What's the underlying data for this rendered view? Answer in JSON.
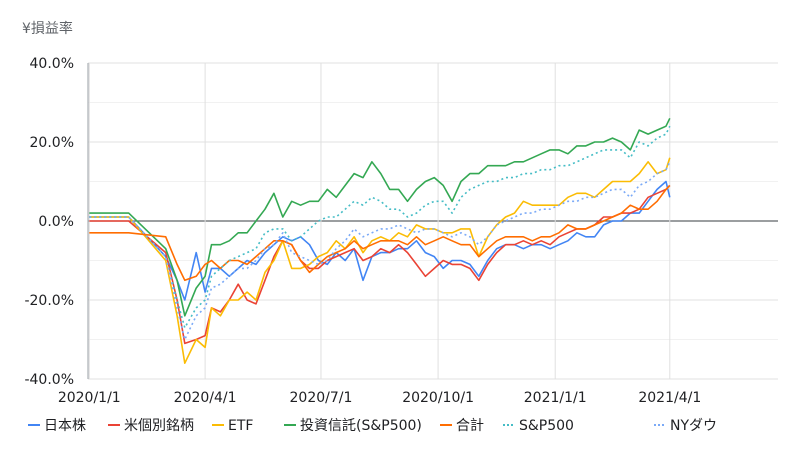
{
  "chart_data": {
    "type": "line",
    "title": "¥損益率",
    "xlabel": "",
    "ylabel": "",
    "x_ticks": [
      "2020/1/1",
      "2020/4/1",
      "2020/7/1",
      "2020/10/1",
      "2021/1/1",
      "2021/4/1"
    ],
    "y_ticks": [
      "40.0%",
      "20.0%",
      "0.0%",
      "-20.0%",
      "-40.0%"
    ],
    "ylim": [
      -40,
      40
    ],
    "xlim": [
      "2019-12-31",
      "2021-06-25"
    ],
    "grid": true,
    "legend_position": "bottom",
    "series": [
      {
        "name": "日本株",
        "color": "#4285F4",
        "dash": false,
        "x": [
          "2020-01-01",
          "2020-02-01",
          "2020-03-01",
          "2020-03-10",
          "2020-03-16",
          "2020-03-25",
          "2020-04-01",
          "2020-04-06",
          "2020-04-13",
          "2020-04-20",
          "2020-04-27",
          "2020-05-04",
          "2020-05-11",
          "2020-05-18",
          "2020-05-25",
          "2020-06-01",
          "2020-06-08",
          "2020-06-15",
          "2020-06-22",
          "2020-06-29",
          "2020-07-06",
          "2020-07-13",
          "2020-07-20",
          "2020-07-27",
          "2020-08-03",
          "2020-08-10",
          "2020-08-17",
          "2020-08-24",
          "2020-08-31",
          "2020-09-07",
          "2020-09-14",
          "2020-09-21",
          "2020-09-28",
          "2020-10-05",
          "2020-10-12",
          "2020-10-19",
          "2020-10-26",
          "2020-11-02",
          "2020-11-09",
          "2020-11-16",
          "2020-11-23",
          "2020-11-30",
          "2020-12-07",
          "2020-12-14",
          "2020-12-21",
          "2020-12-28",
          "2021-01-04",
          "2021-01-11",
          "2021-01-18",
          "2021-01-25",
          "2021-02-01",
          "2021-02-08",
          "2021-02-15",
          "2021-02-22",
          "2021-03-01",
          "2021-03-08",
          "2021-03-15",
          "2021-03-22",
          "2021-03-29",
          "2021-04-01"
        ],
        "values": [
          1,
          1,
          -9,
          -15,
          -20,
          -8,
          -18,
          -12,
          -12,
          -14,
          -12,
          -10,
          -11,
          -8,
          -6,
          -4,
          -5,
          -4,
          -6,
          -10,
          -11,
          -8,
          -10,
          -7,
          -15,
          -9,
          -8,
          -8,
          -7,
          -7,
          -5,
          -8,
          -9,
          -12,
          -10,
          -10,
          -11,
          -14,
          -10,
          -7,
          -6,
          -6,
          -7,
          -6,
          -6,
          -7,
          -6,
          -5,
          -3,
          -4,
          -4,
          -1,
          0,
          0,
          2,
          2,
          5,
          8,
          10,
          6
        ]
      },
      {
        "name": "米個別銘柄",
        "color": "#EA4335",
        "dash": false,
        "x": [
          "2020-01-01",
          "2020-02-01",
          "2020-03-01",
          "2020-03-10",
          "2020-03-16",
          "2020-03-25",
          "2020-04-01",
          "2020-04-06",
          "2020-04-13",
          "2020-04-20",
          "2020-04-27",
          "2020-05-04",
          "2020-05-11",
          "2020-05-18",
          "2020-05-25",
          "2020-06-01",
          "2020-06-08",
          "2020-06-15",
          "2020-06-22",
          "2020-06-29",
          "2020-07-06",
          "2020-07-13",
          "2020-07-20",
          "2020-07-27",
          "2020-08-03",
          "2020-08-10",
          "2020-08-17",
          "2020-08-24",
          "2020-08-31",
          "2020-09-07",
          "2020-09-14",
          "2020-09-21",
          "2020-09-28",
          "2020-10-05",
          "2020-10-12",
          "2020-10-19",
          "2020-10-26",
          "2020-11-02",
          "2020-11-09",
          "2020-11-16",
          "2020-11-23",
          "2020-11-30",
          "2020-12-07",
          "2020-12-14",
          "2020-12-21",
          "2020-12-28",
          "2021-01-04",
          "2021-01-11",
          "2021-01-18",
          "2021-01-25",
          "2021-02-01",
          "2021-02-08",
          "2021-02-15",
          "2021-02-22",
          "2021-03-01",
          "2021-03-08",
          "2021-03-15",
          "2021-03-22",
          "2021-03-29",
          "2021-04-01"
        ],
        "values": [
          0,
          0,
          -8,
          -20,
          -31,
          -30,
          -29,
          -22,
          -23,
          -20,
          -16,
          -20,
          -21,
          -15,
          -9,
          -5,
          -6,
          -10,
          -12,
          -12,
          -10,
          -9,
          -8,
          -7,
          -10,
          -9,
          -7,
          -8,
          -6,
          -8,
          -11,
          -14,
          -12,
          -10,
          -11,
          -11,
          -12,
          -15,
          -11,
          -8,
          -6,
          -6,
          -5,
          -6,
          -5,
          -6,
          -4,
          -3,
          -2,
          -2,
          -1,
          1,
          1,
          2,
          2,
          3,
          6,
          7,
          8,
          9
        ]
      },
      {
        "name": "ETF",
        "color": "#FBBC04",
        "dash": false,
        "x": [
          "2020-01-01",
          "2020-02-01",
          "2020-03-01",
          "2020-03-10",
          "2020-03-16",
          "2020-03-25",
          "2020-04-01",
          "2020-04-06",
          "2020-04-13",
          "2020-04-20",
          "2020-04-27",
          "2020-05-04",
          "2020-05-11",
          "2020-05-18",
          "2020-05-25",
          "2020-06-01",
          "2020-06-08",
          "2020-06-15",
          "2020-06-22",
          "2020-06-29",
          "2020-07-06",
          "2020-07-13",
          "2020-07-20",
          "2020-07-27",
          "2020-08-03",
          "2020-08-10",
          "2020-08-17",
          "2020-08-24",
          "2020-08-31",
          "2020-09-07",
          "2020-09-14",
          "2020-09-21",
          "2020-09-28",
          "2020-10-05",
          "2020-10-12",
          "2020-10-19",
          "2020-10-26",
          "2020-11-02",
          "2020-11-09",
          "2020-11-16",
          "2020-11-23",
          "2020-11-30",
          "2020-12-07",
          "2020-12-14",
          "2020-12-21",
          "2020-12-28",
          "2021-01-04",
          "2021-01-11",
          "2021-01-18",
          "2021-01-25",
          "2021-02-01",
          "2021-02-08",
          "2021-02-15",
          "2021-02-22",
          "2021-03-01",
          "2021-03-08",
          "2021-03-15",
          "2021-03-22",
          "2021-03-29",
          "2021-04-01"
        ],
        "values": [
          1,
          1,
          -10,
          -24,
          -36,
          -30,
          -32,
          -22,
          -24,
          -20,
          -20,
          -18,
          -20,
          -13,
          -10,
          -5,
          -12,
          -12,
          -11,
          -9,
          -8,
          -5,
          -7,
          -4,
          -8,
          -5,
          -4,
          -5,
          -3,
          -4,
          -1,
          -2,
          -2,
          -3,
          -3,
          -2,
          -2,
          -9,
          -4,
          -1,
          1,
          2,
          5,
          4,
          4,
          4,
          4,
          6,
          7,
          7,
          6,
          8,
          10,
          10,
          10,
          12,
          15,
          12,
          13,
          16
        ]
      },
      {
        "name": "投資信託(S&P500)",
        "color": "#34A853",
        "dash": false,
        "x": [
          "2020-01-01",
          "2020-02-01",
          "2020-03-01",
          "2020-03-10",
          "2020-03-16",
          "2020-03-25",
          "2020-04-01",
          "2020-04-06",
          "2020-04-13",
          "2020-04-20",
          "2020-04-27",
          "2020-05-04",
          "2020-05-11",
          "2020-05-18",
          "2020-05-25",
          "2020-06-01",
          "2020-06-08",
          "2020-06-15",
          "2020-06-22",
          "2020-06-29",
          "2020-07-06",
          "2020-07-13",
          "2020-07-20",
          "2020-07-27",
          "2020-08-03",
          "2020-08-10",
          "2020-08-17",
          "2020-08-24",
          "2020-08-31",
          "2020-09-07",
          "2020-09-14",
          "2020-09-21",
          "2020-09-28",
          "2020-10-05",
          "2020-10-12",
          "2020-10-19",
          "2020-10-26",
          "2020-11-02",
          "2020-11-09",
          "2020-11-16",
          "2020-11-23",
          "2020-11-30",
          "2020-12-07",
          "2020-12-14",
          "2020-12-21",
          "2020-12-28",
          "2021-01-04",
          "2021-01-11",
          "2021-01-18",
          "2021-01-25",
          "2021-02-01",
          "2021-02-08",
          "2021-02-15",
          "2021-02-22",
          "2021-03-01",
          "2021-03-08",
          "2021-03-15",
          "2021-03-22",
          "2021-03-29",
          "2021-04-01"
        ],
        "values": [
          2,
          2,
          -7,
          -15,
          -24,
          -17,
          -14,
          -6,
          -6,
          -5,
          -3,
          -3,
          0,
          3,
          7,
          1,
          5,
          4,
          5,
          5,
          8,
          6,
          9,
          12,
          11,
          15,
          12,
          8,
          8,
          5,
          8,
          10,
          11,
          9,
          5,
          10,
          12,
          12,
          14,
          14,
          14,
          15,
          15,
          16,
          17,
          18,
          18,
          17,
          19,
          19,
          20,
          20,
          21,
          20,
          18,
          23,
          22,
          23,
          24,
          26
        ]
      },
      {
        "name": "合計",
        "color": "#FF6D01",
        "dash": false,
        "x": [
          "2020-01-01",
          "2020-02-01",
          "2020-03-01",
          "2020-03-10",
          "2020-03-16",
          "2020-03-25",
          "2020-04-01",
          "2020-04-06",
          "2020-04-13",
          "2020-04-20",
          "2020-04-27",
          "2020-05-04",
          "2020-05-11",
          "2020-05-18",
          "2020-05-25",
          "2020-06-01",
          "2020-06-08",
          "2020-06-15",
          "2020-06-22",
          "2020-06-29",
          "2020-07-06",
          "2020-07-13",
          "2020-07-20",
          "2020-07-27",
          "2020-08-03",
          "2020-08-10",
          "2020-08-17",
          "2020-08-24",
          "2020-08-31",
          "2020-09-07",
          "2020-09-14",
          "2020-09-21",
          "2020-09-28",
          "2020-10-05",
          "2020-10-12",
          "2020-10-19",
          "2020-10-26",
          "2020-11-02",
          "2020-11-09",
          "2020-11-16",
          "2020-11-23",
          "2020-11-30",
          "2020-12-07",
          "2020-12-14",
          "2020-12-21",
          "2020-12-28",
          "2021-01-04",
          "2021-01-11",
          "2021-01-18",
          "2021-01-25",
          "2021-02-01",
          "2021-02-08",
          "2021-02-15",
          "2021-02-22",
          "2021-03-01",
          "2021-03-08",
          "2021-03-15",
          "2021-03-22",
          "2021-03-29",
          "2021-04-01"
        ],
        "values": [
          -3,
          -3,
          -4,
          -11,
          -15,
          -14,
          -11,
          -10,
          -12,
          -10,
          -10,
          -11,
          -9,
          -7,
          -5,
          -5,
          -6,
          -10,
          -13,
          -11,
          -9,
          -8,
          -7,
          -5,
          -7,
          -6,
          -5,
          -5,
          -5,
          -6,
          -4,
          -6,
          -5,
          -4,
          -5,
          -6,
          -6,
          -9,
          -7,
          -5,
          -4,
          -4,
          -4,
          -5,
          -4,
          -4,
          -3,
          -1,
          -2,
          -2,
          -1,
          0,
          1,
          2,
          4,
          3,
          3,
          5,
          8,
          9
        ]
      },
      {
        "name": "S&P500",
        "color": "#46BDC6",
        "dash": true,
        "x": [
          "2020-01-01",
          "2020-02-01",
          "2020-03-01",
          "2020-03-10",
          "2020-03-16",
          "2020-03-25",
          "2020-04-01",
          "2020-04-06",
          "2020-04-13",
          "2020-04-20",
          "2020-04-27",
          "2020-05-04",
          "2020-05-11",
          "2020-05-18",
          "2020-05-25",
          "2020-06-01",
          "2020-06-08",
          "2020-06-15",
          "2020-06-22",
          "2020-06-29",
          "2020-07-06",
          "2020-07-13",
          "2020-07-20",
          "2020-07-27",
          "2020-08-03",
          "2020-08-10",
          "2020-08-17",
          "2020-08-24",
          "2020-08-31",
          "2020-09-07",
          "2020-09-14",
          "2020-09-21",
          "2020-09-28",
          "2020-10-05",
          "2020-10-12",
          "2020-10-19",
          "2020-10-26",
          "2020-11-02",
          "2020-11-09",
          "2020-11-16",
          "2020-11-23",
          "2020-11-30",
          "2020-12-07",
          "2020-12-14",
          "2020-12-21",
          "2020-12-28",
          "2021-01-04",
          "2021-01-11",
          "2021-01-18",
          "2021-01-25",
          "2021-02-01",
          "2021-02-08",
          "2021-02-15",
          "2021-02-22",
          "2021-03-01",
          "2021-03-08",
          "2021-03-15",
          "2021-03-22",
          "2021-03-29",
          "2021-04-01"
        ],
        "values": [
          1,
          1,
          -9,
          -20,
          -27,
          -22,
          -20,
          -14,
          -12,
          -10,
          -9,
          -8,
          -7,
          -3,
          -2,
          -2,
          -5,
          -4,
          -2,
          0,
          1,
          1,
          3,
          5,
          4,
          6,
          5,
          3,
          3,
          1,
          2,
          4,
          5,
          5,
          2,
          6,
          8,
          9,
          10,
          10,
          11,
          11,
          12,
          12,
          13,
          13,
          14,
          14,
          15,
          16,
          17,
          18,
          18,
          18,
          16,
          20,
          19,
          21,
          22,
          24
        ]
      },
      {
        "name": "NYダウ",
        "color": "#7BAAF7",
        "dash": true,
        "x": [
          "2020-01-01",
          "2020-02-01",
          "2020-03-01",
          "2020-03-10",
          "2020-03-16",
          "2020-03-25",
          "2020-04-01",
          "2020-04-06",
          "2020-04-13",
          "2020-04-20",
          "2020-04-27",
          "2020-05-04",
          "2020-05-11",
          "2020-05-18",
          "2020-05-25",
          "2020-06-01",
          "2020-06-08",
          "2020-06-15",
          "2020-06-22",
          "2020-06-29",
          "2020-07-06",
          "2020-07-13",
          "2020-07-20",
          "2020-07-27",
          "2020-08-03",
          "2020-08-10",
          "2020-08-17",
          "2020-08-24",
          "2020-08-31",
          "2020-09-07",
          "2020-09-14",
          "2020-09-21",
          "2020-09-28",
          "2020-10-05",
          "2020-10-12",
          "2020-10-19",
          "2020-10-26",
          "2020-11-02",
          "2020-11-09",
          "2020-11-16",
          "2020-11-23",
          "2020-11-30",
          "2020-12-07",
          "2020-12-14",
          "2020-12-21",
          "2020-12-28",
          "2021-01-04",
          "2021-01-11",
          "2021-01-18",
          "2021-01-25",
          "2021-02-01",
          "2021-02-08",
          "2021-02-15",
          "2021-02-22",
          "2021-03-01",
          "2021-03-08",
          "2021-03-15",
          "2021-03-22",
          "2021-03-29",
          "2021-04-01"
        ],
        "values": [
          1,
          1,
          -9,
          -22,
          -30,
          -24,
          -22,
          -17,
          -16,
          -14,
          -12,
          -12,
          -10,
          -7,
          -6,
          -3,
          -8,
          -9,
          -10,
          -11,
          -10,
          -7,
          -5,
          -2,
          -4,
          -3,
          -2,
          -2,
          -1,
          -2,
          -3,
          -2,
          -2,
          -3,
          -4,
          -3,
          -4,
          -6,
          -4,
          -1,
          0,
          1,
          2,
          2,
          3,
          3,
          4,
          5,
          5,
          6,
          6,
          7,
          8,
          8,
          6,
          9,
          10,
          12,
          13,
          15
        ]
      }
    ]
  }
}
